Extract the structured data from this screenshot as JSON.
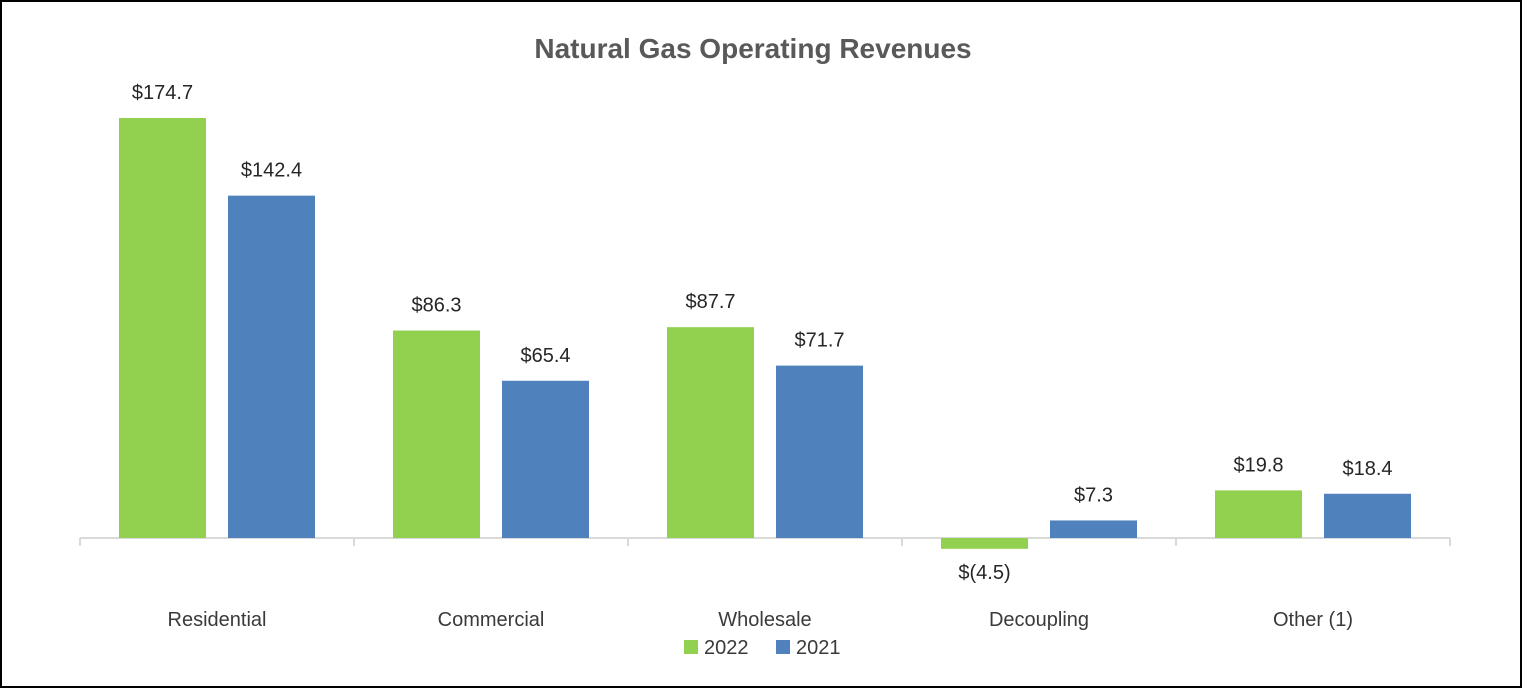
{
  "chart_data": {
    "type": "bar",
    "title": "Natural Gas Operating Revenues",
    "xlabel": "",
    "ylabel": "",
    "categories": [
      "Residential",
      "Commercial",
      "Wholesale",
      "Decoupling",
      "Other (1)"
    ],
    "series": [
      {
        "name": "2022",
        "color": "#92D050",
        "values": [
          174.7,
          86.3,
          87.7,
          -4.5,
          19.8
        ],
        "labels": [
          "$174.7",
          "$86.3",
          "$87.7",
          "$(4.5)",
          "$19.8"
        ]
      },
      {
        "name": "2021",
        "color": "#4F81BD",
        "values": [
          142.4,
          65.4,
          71.7,
          7.3,
          18.4
        ],
        "labels": [
          "$142.4",
          "$65.4",
          "$71.7",
          "$7.3",
          "$18.4"
        ]
      }
    ],
    "ylim": [
      -4.5,
      174.7
    ],
    "grid": false,
    "legend_position": "bottom"
  }
}
